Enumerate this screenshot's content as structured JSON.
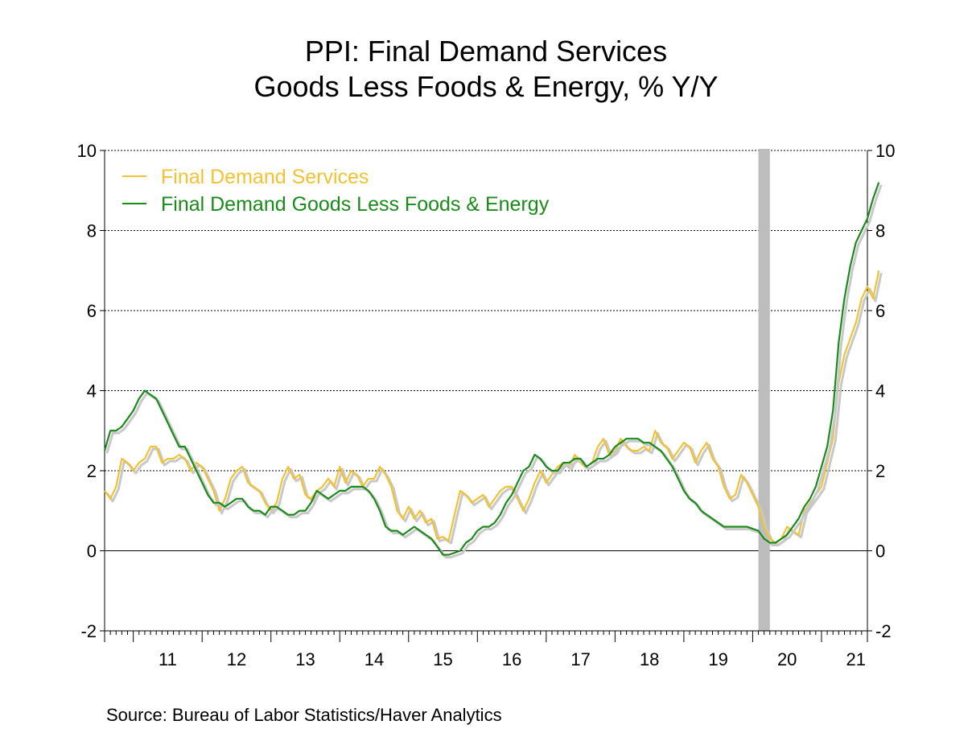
{
  "chart_data": {
    "type": "line",
    "title": "PPI: Final Demand Services",
    "subtitle": "Goods Less Foods & Energy, % Y/Y",
    "source": "Source:  Bureau of Labor Statistics/Haver Analytics",
    "ylim": [
      -2,
      10
    ],
    "yticks": [
      -2,
      0,
      2,
      4,
      6,
      8,
      10
    ],
    "ytick_labels": [
      "-2",
      "0",
      "2",
      "4",
      "6",
      "8",
      "10"
    ],
    "xlim": [
      2010.583,
      2021.667
    ],
    "x_tick_labels": [
      "11",
      "12",
      "13",
      "14",
      "15",
      "16",
      "17",
      "18",
      "19",
      "20",
      "21"
    ],
    "x_tick_years": [
      2011,
      2012,
      2013,
      2014,
      2015,
      2016,
      2017,
      2018,
      2019,
      2020,
      2021
    ],
    "grid": "horizontal dotted",
    "legend_position": "top-left",
    "recession": {
      "start": 2020.083,
      "end": 2020.25
    },
    "series": [
      {
        "name": "Final Demand Services",
        "color": "#f2c230",
        "points": [
          [
            2010.583,
            1.5
          ],
          [
            2010.667,
            1.3
          ],
          [
            2010.75,
            1.6
          ],
          [
            2010.833,
            2.3
          ],
          [
            2010.917,
            2.2
          ],
          [
            2011.0,
            2.0
          ],
          [
            2011.083,
            2.2
          ],
          [
            2011.167,
            2.3
          ],
          [
            2011.25,
            2.6
          ],
          [
            2011.333,
            2.6
          ],
          [
            2011.417,
            2.2
          ],
          [
            2011.5,
            2.3
          ],
          [
            2011.583,
            2.3
          ],
          [
            2011.667,
            2.4
          ],
          [
            2011.75,
            2.3
          ],
          [
            2011.833,
            2.0
          ],
          [
            2011.917,
            2.2
          ],
          [
            2012.0,
            2.1
          ],
          [
            2012.083,
            1.8
          ],
          [
            2012.167,
            1.5
          ],
          [
            2012.25,
            1.0
          ],
          [
            2012.333,
            1.3
          ],
          [
            2012.417,
            1.8
          ],
          [
            2012.5,
            2.0
          ],
          [
            2012.583,
            2.1
          ],
          [
            2012.667,
            1.7
          ],
          [
            2012.75,
            1.6
          ],
          [
            2012.833,
            1.5
          ],
          [
            2012.917,
            1.2
          ],
          [
            2013.0,
            1.0
          ],
          [
            2013.083,
            1.2
          ],
          [
            2013.167,
            1.8
          ],
          [
            2013.25,
            2.1
          ],
          [
            2013.333,
            1.8
          ],
          [
            2013.417,
            1.9
          ],
          [
            2013.5,
            1.4
          ],
          [
            2013.583,
            1.3
          ],
          [
            2013.667,
            1.5
          ],
          [
            2013.75,
            1.6
          ],
          [
            2013.833,
            1.8
          ],
          [
            2013.917,
            1.6
          ],
          [
            2014.0,
            2.1
          ],
          [
            2014.083,
            1.7
          ],
          [
            2014.167,
            2.0
          ],
          [
            2014.25,
            1.9
          ],
          [
            2014.333,
            1.6
          ],
          [
            2014.417,
            1.8
          ],
          [
            2014.5,
            1.8
          ],
          [
            2014.583,
            2.1
          ],
          [
            2014.667,
            1.9
          ],
          [
            2014.75,
            1.6
          ],
          [
            2014.833,
            1.0
          ],
          [
            2014.917,
            0.8
          ],
          [
            2015.0,
            1.1
          ],
          [
            2015.083,
            0.8
          ],
          [
            2015.167,
            1.0
          ],
          [
            2015.25,
            0.7
          ],
          [
            2015.333,
            0.8
          ],
          [
            2015.417,
            0.3
          ],
          [
            2015.5,
            0.35
          ],
          [
            2015.583,
            0.25
          ],
          [
            2015.667,
            0.9
          ],
          [
            2015.75,
            1.5
          ],
          [
            2015.833,
            1.4
          ],
          [
            2015.917,
            1.2
          ],
          [
            2016.0,
            1.3
          ],
          [
            2016.083,
            1.4
          ],
          [
            2016.167,
            1.1
          ],
          [
            2016.25,
            1.3
          ],
          [
            2016.333,
            1.5
          ],
          [
            2016.417,
            1.6
          ],
          [
            2016.5,
            1.6
          ],
          [
            2016.583,
            1.3
          ],
          [
            2016.667,
            1.0
          ],
          [
            2016.75,
            1.3
          ],
          [
            2016.833,
            1.7
          ],
          [
            2016.917,
            2.0
          ],
          [
            2017.0,
            1.7
          ],
          [
            2017.083,
            1.9
          ],
          [
            2017.167,
            2.1
          ],
          [
            2017.25,
            2.2
          ],
          [
            2017.333,
            2.1
          ],
          [
            2017.417,
            2.4
          ],
          [
            2017.5,
            2.2
          ],
          [
            2017.583,
            2.1
          ],
          [
            2017.667,
            2.2
          ],
          [
            2017.75,
            2.6
          ],
          [
            2017.833,
            2.8
          ],
          [
            2017.917,
            2.4
          ],
          [
            2018.0,
            2.5
          ],
          [
            2018.083,
            2.8
          ],
          [
            2018.167,
            2.6
          ],
          [
            2018.25,
            2.5
          ],
          [
            2018.333,
            2.5
          ],
          [
            2018.417,
            2.6
          ],
          [
            2018.5,
            2.5
          ],
          [
            2018.583,
            3.0
          ],
          [
            2018.667,
            2.7
          ],
          [
            2018.75,
            2.6
          ],
          [
            2018.833,
            2.3
          ],
          [
            2018.917,
            2.5
          ],
          [
            2019.0,
            2.7
          ],
          [
            2019.083,
            2.6
          ],
          [
            2019.167,
            2.2
          ],
          [
            2019.25,
            2.5
          ],
          [
            2019.333,
            2.7
          ],
          [
            2019.417,
            2.3
          ],
          [
            2019.5,
            2.1
          ],
          [
            2019.583,
            1.6
          ],
          [
            2019.667,
            1.3
          ],
          [
            2019.75,
            1.4
          ],
          [
            2019.833,
            1.9
          ],
          [
            2019.917,
            1.7
          ],
          [
            2020.0,
            1.4
          ],
          [
            2020.083,
            1.1
          ],
          [
            2020.167,
            0.6
          ],
          [
            2020.25,
            0.3
          ],
          [
            2020.333,
            0.2
          ],
          [
            2020.417,
            0.3
          ],
          [
            2020.5,
            0.6
          ],
          [
            2020.583,
            0.5
          ],
          [
            2020.667,
            0.4
          ],
          [
            2020.75,
            1.0
          ],
          [
            2020.833,
            1.2
          ],
          [
            2020.917,
            1.4
          ],
          [
            2021.0,
            1.6
          ],
          [
            2021.083,
            2.2
          ],
          [
            2021.167,
            2.8
          ],
          [
            2021.25,
            4.2
          ],
          [
            2021.333,
            4.9
          ],
          [
            2021.417,
            5.3
          ],
          [
            2021.5,
            5.7
          ],
          [
            2021.583,
            6.3
          ],
          [
            2021.667,
            6.6
          ],
          [
            2021.75,
            6.3
          ],
          [
            2021.833,
            7.0
          ]
        ]
      },
      {
        "name": "Final Demand Goods Less Foods & Energy",
        "color": "#1a8a1a",
        "points": [
          [
            2010.583,
            2.5
          ],
          [
            2010.667,
            3.0
          ],
          [
            2010.75,
            3.0
          ],
          [
            2010.833,
            3.1
          ],
          [
            2010.917,
            3.3
          ],
          [
            2011.0,
            3.5
          ],
          [
            2011.083,
            3.8
          ],
          [
            2011.167,
            4.0
          ],
          [
            2011.25,
            3.9
          ],
          [
            2011.333,
            3.8
          ],
          [
            2011.417,
            3.5
          ],
          [
            2011.5,
            3.2
          ],
          [
            2011.583,
            2.9
          ],
          [
            2011.667,
            2.6
          ],
          [
            2011.75,
            2.6
          ],
          [
            2011.833,
            2.3
          ],
          [
            2011.917,
            2.0
          ],
          [
            2012.0,
            1.7
          ],
          [
            2012.083,
            1.4
          ],
          [
            2012.167,
            1.2
          ],
          [
            2012.25,
            1.2
          ],
          [
            2012.333,
            1.1
          ],
          [
            2012.417,
            1.2
          ],
          [
            2012.5,
            1.3
          ],
          [
            2012.583,
            1.3
          ],
          [
            2012.667,
            1.1
          ],
          [
            2012.75,
            1.0
          ],
          [
            2012.833,
            1.0
          ],
          [
            2012.917,
            0.9
          ],
          [
            2013.0,
            1.1
          ],
          [
            2013.083,
            1.1
          ],
          [
            2013.167,
            1.0
          ],
          [
            2013.25,
            0.9
          ],
          [
            2013.333,
            0.9
          ],
          [
            2013.417,
            1.0
          ],
          [
            2013.5,
            1.0
          ],
          [
            2013.583,
            1.2
          ],
          [
            2013.667,
            1.5
          ],
          [
            2013.75,
            1.4
          ],
          [
            2013.833,
            1.3
          ],
          [
            2013.917,
            1.4
          ],
          [
            2014.0,
            1.5
          ],
          [
            2014.083,
            1.5
          ],
          [
            2014.167,
            1.6
          ],
          [
            2014.25,
            1.6
          ],
          [
            2014.333,
            1.6
          ],
          [
            2014.417,
            1.5
          ],
          [
            2014.5,
            1.3
          ],
          [
            2014.583,
            1.0
          ],
          [
            2014.667,
            0.6
          ],
          [
            2014.75,
            0.5
          ],
          [
            2014.833,
            0.5
          ],
          [
            2014.917,
            0.4
          ],
          [
            2015.0,
            0.5
          ],
          [
            2015.083,
            0.6
          ],
          [
            2015.167,
            0.5
          ],
          [
            2015.25,
            0.4
          ],
          [
            2015.333,
            0.3
          ],
          [
            2015.417,
            0.1
          ],
          [
            2015.5,
            -0.1
          ],
          [
            2015.583,
            -0.1
          ],
          [
            2015.667,
            -0.05
          ],
          [
            2015.75,
            0.0
          ],
          [
            2015.833,
            0.2
          ],
          [
            2015.917,
            0.3
          ],
          [
            2016.0,
            0.5
          ],
          [
            2016.083,
            0.6
          ],
          [
            2016.167,
            0.6
          ],
          [
            2016.25,
            0.7
          ],
          [
            2016.333,
            0.9
          ],
          [
            2016.417,
            1.2
          ],
          [
            2016.5,
            1.4
          ],
          [
            2016.583,
            1.7
          ],
          [
            2016.667,
            2.0
          ],
          [
            2016.75,
            2.1
          ],
          [
            2016.833,
            2.4
          ],
          [
            2016.917,
            2.3
          ],
          [
            2017.0,
            2.1
          ],
          [
            2017.083,
            2.0
          ],
          [
            2017.167,
            2.0
          ],
          [
            2017.25,
            2.2
          ],
          [
            2017.333,
            2.2
          ],
          [
            2017.417,
            2.3
          ],
          [
            2017.5,
            2.3
          ],
          [
            2017.583,
            2.1
          ],
          [
            2017.667,
            2.2
          ],
          [
            2017.75,
            2.3
          ],
          [
            2017.833,
            2.3
          ],
          [
            2017.917,
            2.4
          ],
          [
            2018.0,
            2.6
          ],
          [
            2018.083,
            2.7
          ],
          [
            2018.167,
            2.8
          ],
          [
            2018.25,
            2.8
          ],
          [
            2018.333,
            2.8
          ],
          [
            2018.417,
            2.7
          ],
          [
            2018.5,
            2.7
          ],
          [
            2018.583,
            2.6
          ],
          [
            2018.667,
            2.5
          ],
          [
            2018.75,
            2.3
          ],
          [
            2018.833,
            2.1
          ],
          [
            2018.917,
            1.8
          ],
          [
            2019.0,
            1.5
          ],
          [
            2019.083,
            1.3
          ],
          [
            2019.167,
            1.2
          ],
          [
            2019.25,
            1.0
          ],
          [
            2019.333,
            0.9
          ],
          [
            2019.417,
            0.8
          ],
          [
            2019.5,
            0.7
          ],
          [
            2019.583,
            0.6
          ],
          [
            2019.667,
            0.6
          ],
          [
            2019.75,
            0.6
          ],
          [
            2019.833,
            0.6
          ],
          [
            2019.917,
            0.6
          ],
          [
            2020.0,
            0.55
          ],
          [
            2020.083,
            0.5
          ],
          [
            2020.167,
            0.3
          ],
          [
            2020.25,
            0.2
          ],
          [
            2020.333,
            0.2
          ],
          [
            2020.417,
            0.3
          ],
          [
            2020.5,
            0.4
          ],
          [
            2020.583,
            0.6
          ],
          [
            2020.667,
            0.8
          ],
          [
            2020.75,
            1.1
          ],
          [
            2020.833,
            1.3
          ],
          [
            2020.917,
            1.6
          ],
          [
            2021.0,
            2.1
          ],
          [
            2021.083,
            2.6
          ],
          [
            2021.167,
            3.5
          ],
          [
            2021.25,
            5.2
          ],
          [
            2021.333,
            6.3
          ],
          [
            2021.417,
            7.1
          ],
          [
            2021.5,
            7.7
          ],
          [
            2021.583,
            8.0
          ],
          [
            2021.667,
            8.3
          ],
          [
            2021.75,
            8.8
          ],
          [
            2021.833,
            9.2
          ]
        ]
      }
    ]
  }
}
